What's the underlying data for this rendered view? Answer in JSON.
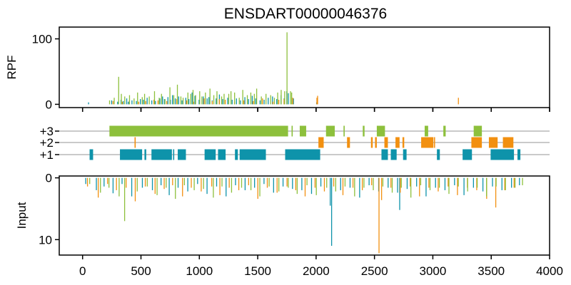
{
  "title": "ENSDART00000046376",
  "colors": {
    "frame1": "#0e93aa",
    "frame2": "#f29010",
    "frame3": "#8dc03c",
    "track": "#aaaaaa",
    "axis": "#000000"
  },
  "chart_data": [
    {
      "type": "bar",
      "panel": "rpf",
      "ylabel": "RPF",
      "xlim": [
        -200,
        4000
      ],
      "ylim": [
        -5,
        118
      ],
      "yticks": [
        0,
        100
      ],
      "series": [
        {
          "frame": "frame1",
          "x": [
            51,
            249,
            300,
            329,
            348,
            378,
            392,
            423,
            461,
            495,
            521,
            553,
            593,
            624,
            662,
            685,
            701,
            731,
            752,
            770,
            794,
            823,
            852,
            884,
            910,
            938,
            962,
            998,
            1034,
            1067,
            1082,
            1110,
            1144,
            1172,
            1200,
            1243,
            1281,
            1318,
            1352,
            1390,
            1421,
            1453,
            1483,
            1520,
            1555,
            1590,
            1627,
            1663,
            1700,
            1726,
            1749,
            1762,
            1806,
            2005
          ],
          "y": [
            3,
            6,
            4,
            7,
            5,
            9,
            4,
            6,
            5,
            8,
            7,
            10,
            6,
            5,
            9,
            12,
            8,
            11,
            7,
            14,
            9,
            12,
            6,
            10,
            8,
            18,
            13,
            7,
            12,
            9,
            11,
            6,
            9,
            15,
            8,
            10,
            7,
            9,
            6,
            11,
            8,
            13,
            9,
            6,
            7,
            10,
            12,
            8,
            14,
            9,
            20,
            17,
            9,
            3
          ]
        },
        {
          "frame": "frame2",
          "x": [
            261,
            341,
            401,
            481,
            541,
            611,
            646,
            721,
            807,
            891,
            951,
            1041,
            1111,
            1171,
            1222,
            1301,
            1381,
            1461,
            1541,
            1631,
            1681,
            1726,
            1800,
            2007,
            2013,
            3219
          ],
          "y": [
            5,
            4,
            6,
            4,
            5,
            7,
            6,
            5,
            8,
            6,
            4,
            9,
            5,
            8,
            7,
            4,
            6,
            5,
            9,
            4,
            7,
            8,
            10,
            10,
            13,
            10
          ]
        },
        {
          "frame": "frame3",
          "x": [
            231,
            271,
            309,
            332,
            361,
            402,
            441,
            471,
            511,
            531,
            571,
            616,
            656,
            676,
            706,
            748,
            781,
            812,
            842,
            861,
            902,
            926,
            946,
            968,
            1003,
            1022,
            1052,
            1091,
            1124,
            1151,
            1191,
            1212,
            1252,
            1271,
            1302,
            1342,
            1372,
            1411,
            1441,
            1471,
            1491,
            1531,
            1571,
            1611,
            1643,
            1671,
            1701,
            1731,
            1751,
            1781,
            1791
          ],
          "y": [
            6,
            10,
            42,
            16,
            12,
            14,
            9,
            18,
            11,
            16,
            12,
            20,
            10,
            16,
            8,
            26,
            14,
            30,
            12,
            10,
            18,
            16,
            22,
            14,
            20,
            12,
            18,
            24,
            14,
            20,
            12,
            16,
            16,
            20,
            18,
            10,
            22,
            14,
            18,
            16,
            24,
            12,
            16,
            14,
            10,
            18,
            22,
            20,
            110,
            20,
            18
          ]
        }
      ]
    },
    {
      "type": "gantt",
      "panel": "orfs",
      "yticklabels": [
        "+3",
        "+2",
        "+1"
      ],
      "frames": {
        "frame3": [
          [
            230,
            1760
          ],
          [
            1790,
            1800
          ],
          [
            1860,
            1915
          ],
          [
            2085,
            2160
          ],
          [
            2235,
            2245
          ],
          [
            2400,
            2415
          ],
          [
            2520,
            2590
          ],
          [
            2930,
            2960
          ],
          [
            3090,
            3110
          ],
          [
            3350,
            3420
          ]
        ],
        "frame2": [
          [
            445,
            455
          ],
          [
            2020,
            2065
          ],
          [
            2265,
            2290
          ],
          [
            2470,
            2485
          ],
          [
            2505,
            2520
          ],
          [
            2585,
            2615
          ],
          [
            2680,
            2715
          ],
          [
            2740,
            2755
          ],
          [
            2900,
            3005
          ],
          [
            3010,
            3015
          ],
          [
            3330,
            3420
          ],
          [
            3480,
            3555
          ],
          [
            3600,
            3690
          ]
        ],
        "frame1": [
          [
            60,
            90
          ],
          [
            320,
            510
          ],
          [
            530,
            545
          ],
          [
            590,
            765
          ],
          [
            775,
            785
          ],
          [
            815,
            885
          ],
          [
            1045,
            1140
          ],
          [
            1160,
            1225
          ],
          [
            1305,
            1330
          ],
          [
            1345,
            1570
          ],
          [
            1735,
            2035
          ],
          [
            2560,
            2615
          ],
          [
            2640,
            2690
          ],
          [
            2745,
            2775
          ],
          [
            3035,
            3060
          ],
          [
            3255,
            3335
          ],
          [
            3495,
            3695
          ],
          [
            3725,
            3750
          ]
        ]
      }
    },
    {
      "type": "bar",
      "panel": "input",
      "ylabel": "Input",
      "xlabel": "",
      "xlim": [
        -200,
        4000
      ],
      "ylim": [
        12.5,
        -0.3
      ],
      "yticks": [
        0,
        10
      ],
      "xticks": [
        0,
        500,
        1000,
        1500,
        2000,
        2500,
        3000,
        3500,
        4000
      ],
      "series": [
        {
          "frame": "frame1",
          "x": [
            27,
            118,
            184,
            261,
            338,
            421,
            512,
            598,
            672,
            742,
            818,
            901,
            985,
            1066,
            1148,
            1229,
            1310,
            1392,
            1473,
            1554,
            1636,
            1717,
            1798,
            1878,
            1961,
            2041,
            2121,
            2133,
            2210,
            2291,
            2373,
            2454,
            2536,
            2617,
            2698,
            2716,
            2780,
            2861,
            2942,
            3023,
            3104,
            3186,
            3267,
            3348,
            3429,
            3511,
            3592,
            3674,
            3742
          ],
          "y": [
            1,
            2,
            1.4,
            2.5,
            1,
            3,
            1.6,
            2,
            1.2,
            2.8,
            1.6,
            2.2,
            1,
            2.6,
            1.4,
            3,
            1.2,
            2,
            1.6,
            1,
            2.4,
            1.4,
            1.8,
            2,
            2.6,
            1.4,
            4.5,
            11,
            2,
            1.6,
            3.2,
            1.2,
            2.2,
            1.6,
            2.4,
            5.2,
            1.8,
            1.4,
            3,
            1.6,
            2,
            1.2,
            2.8,
            1.6,
            2.2,
            1.4,
            2,
            1.6,
            1.2
          ]
        },
        {
          "frame": "frame2",
          "x": [
            42,
            134,
            214,
            290,
            373,
            451,
            537,
            621,
            699,
            771,
            856,
            931,
            1016,
            1106,
            1176,
            1256,
            1338,
            1422,
            1501,
            1582,
            1666,
            1751,
            1826,
            1906,
            1991,
            2071,
            2151,
            2230,
            2316,
            2396,
            2476,
            2539,
            2561,
            2641,
            2721,
            2806,
            2886,
            2966,
            3046,
            3131,
            3211,
            3296,
            3376,
            3461,
            3539,
            3616,
            3696
          ],
          "y": [
            1.4,
            3.2,
            1,
            2,
            1.6,
            3.8,
            1.4,
            2.6,
            1.8,
            1.2,
            3,
            1.6,
            2.2,
            1.4,
            2.8,
            1.6,
            2,
            1.2,
            3.4,
            1.6,
            2.4,
            1.4,
            2,
            3,
            1.6,
            2.2,
            1.4,
            2.8,
            1.6,
            2,
            1.2,
            12.2,
            3.6,
            1.6,
            2.4,
            1.4,
            3,
            1.6,
            2.2,
            1.4,
            2.8,
            1.6,
            2,
            3.4,
            4.8,
            2,
            1.6
          ]
        },
        {
          "frame": "frame3",
          "x": [
            61,
            153,
            226,
            313,
            360,
            468,
            554,
            638,
            716,
            795,
            872,
            956,
            1036,
            1120,
            1194,
            1276,
            1362,
            1442,
            1518,
            1598,
            1681,
            1762,
            1838,
            1922,
            2002,
            2091,
            2168,
            2248,
            2330,
            2410,
            2490,
            2572,
            2652,
            2730,
            2812,
            2896,
            2976,
            3056,
            3138,
            3218,
            3298,
            3380,
            3460,
            3542,
            3622,
            3704,
            3768
          ],
          "y": [
            1,
            2.4,
            1.6,
            3,
            7,
            2.2,
            1.4,
            2.8,
            1.6,
            3.4,
            1.2,
            2,
            1.8,
            3.2,
            1.4,
            2.4,
            1.6,
            2,
            3,
            1.4,
            2.2,
            1.6,
            2.6,
            1.2,
            2.8,
            1.6,
            2.2,
            1.4,
            3,
            1.6,
            2,
            1.4,
            2.4,
            1.6,
            3.2,
            1.2,
            2,
            1.6,
            2.6,
            1.4,
            2.2,
            1.6,
            3,
            1.4,
            2,
            1.6,
            1.2
          ]
        }
      ]
    }
  ]
}
